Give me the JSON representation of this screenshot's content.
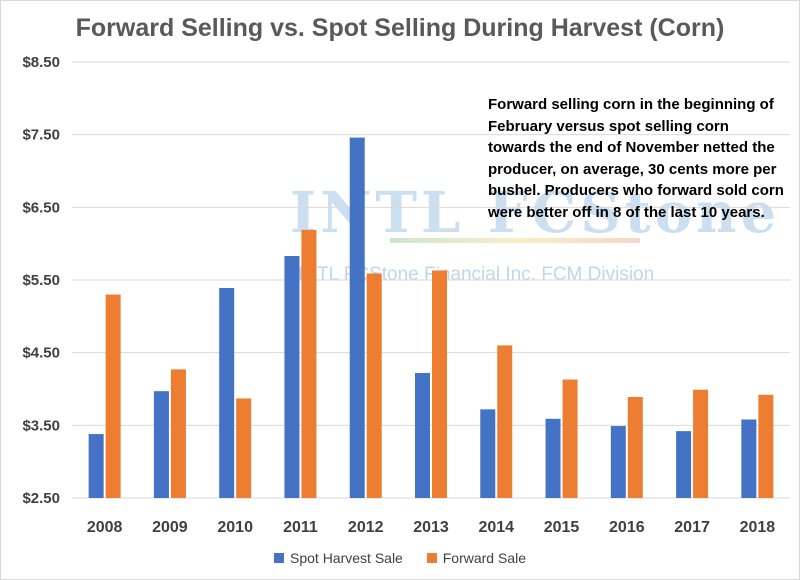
{
  "chart_data": {
    "type": "bar",
    "title": "Forward Selling vs. Spot Selling During Harvest (Corn)",
    "categories": [
      "2008",
      "2009",
      "2010",
      "2011",
      "2012",
      "2013",
      "2014",
      "2015",
      "2016",
      "2017",
      "2018"
    ],
    "series": [
      {
        "name": "Spot Harvest Sale",
        "color": "#4472C4",
        "values": [
          3.38,
          3.97,
          5.39,
          5.83,
          7.46,
          4.22,
          3.72,
          3.59,
          3.49,
          3.42,
          3.58
        ]
      },
      {
        "name": "Forward Sale",
        "color": "#ED7D31",
        "values": [
          5.3,
          4.27,
          3.87,
          6.19,
          5.59,
          5.63,
          4.6,
          4.13,
          3.89,
          3.99,
          3.92
        ]
      }
    ],
    "ylim": [
      2.5,
      8.5
    ],
    "yticks": [
      "$2.50",
      "$3.50",
      "$4.50",
      "$5.50",
      "$6.50",
      "$7.50",
      "$8.50"
    ],
    "ytick_values": [
      2.5,
      3.5,
      4.5,
      5.5,
      6.5,
      7.5,
      8.5
    ],
    "grid": true,
    "legend": "bottom",
    "annotation": "Forward selling corn in the beginning of February versus spot selling corn towards the end of November netted the producer, on average, 30 cents more per bushel. Producers who forward sold corn were better off in 8 of the last 10 years."
  },
  "watermark": {
    "logo": "INTL FCStone",
    "subtitle": "INTL FCStone Financial Inc. FCM Division"
  }
}
